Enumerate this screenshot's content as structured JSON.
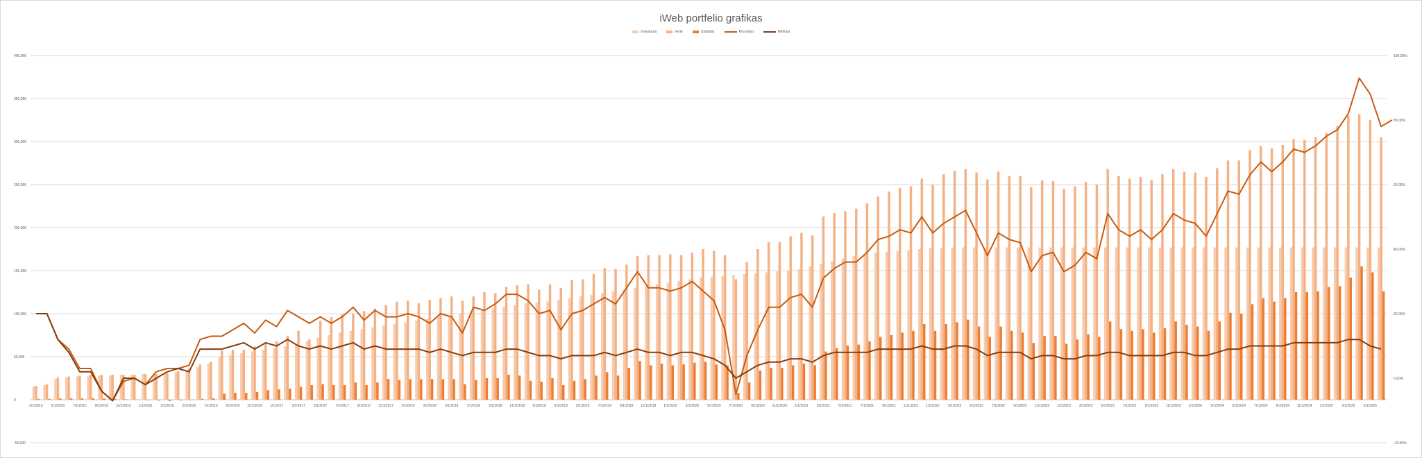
{
  "chart_data": {
    "type": "bar",
    "title": "iWeb portfelio grafikas",
    "legend": "top",
    "grid": true,
    "x_tick_labels": [
      "3/1/2015",
      "5/1/2015",
      "7/1/2015",
      "9/1/2015",
      "11/1/2015",
      "1/1/2016",
      "3/1/2016",
      "5/1/2016",
      "7/1/2016",
      "9/1/2016",
      "11/1/2016",
      "1/1/2017",
      "3/1/2017",
      "5/1/2017",
      "7/1/2017",
      "9/1/2017",
      "11/1/2017",
      "1/1/2018",
      "3/1/2018",
      "5/1/2018",
      "7/1/2018",
      "9/1/2018",
      "11/1/2018",
      "1/1/2019",
      "3/1/2019",
      "5/1/2019",
      "7/1/2019",
      "9/1/2019",
      "11/1/2019",
      "1/1/2020",
      "3/1/2020",
      "5/1/2020",
      "7/1/2020",
      "9/1/2020",
      "11/1/2020",
      "1/1/2021",
      "3/1/2021",
      "5/1/2021",
      "7/1/2021",
      "9/1/2021",
      "11/1/2021",
      "1/1/2022",
      "3/1/2022",
      "5/1/2022",
      "7/1/2022",
      "9/1/2022",
      "11/1/2022",
      "1/1/2023",
      "3/1/2023",
      "5/1/2023",
      "7/1/2023",
      "9/1/2023",
      "11/1/2023",
      "1/1/2024",
      "3/1/2024",
      "5/1/2024",
      "7/1/2024",
      "9/1/2024",
      "11/1/2024",
      "1/1/2025",
      "3/1/2025",
      "5/1/2025"
    ],
    "y_left": {
      "min": -50000,
      "max": 400000,
      "ticks": [
        "-50,000",
        "0",
        "50,000",
        "100,000",
        "150,000",
        "200,000",
        "250,000",
        "300,000",
        "350,000",
        "400,000"
      ]
    },
    "y_right": {
      "min": -0.2,
      "max": 1.0,
      "ticks": [
        "-20.00%",
        "0.00%",
        "20.00%",
        "40.00%",
        "60.00%",
        "80.00%",
        "100.00%"
      ]
    },
    "series": [
      {
        "name": "Investuota",
        "type": "bar",
        "axis": "left",
        "color": "#f8cbad",
        "values": [
          15000,
          17000,
          24000,
          26000,
          27000,
          27000,
          28000,
          28000,
          29000,
          29000,
          30000,
          30000,
          31000,
          32000,
          34000,
          38000,
          42000,
          50000,
          52000,
          54000,
          56000,
          58000,
          60000,
          62000,
          65000,
          68000,
          72000,
          75000,
          78000,
          80000,
          82000,
          84000,
          86000,
          88000,
          90000,
          92000,
          94000,
          96000,
          98000,
          100000,
          102000,
          104000,
          106000,
          108000,
          110000,
          112000,
          113000,
          114000,
          116000,
          118000,
          120000,
          122000,
          124000,
          126000,
          128000,
          130000,
          132000,
          134000,
          136000,
          138000,
          140000,
          142000,
          143000,
          144000,
          145000,
          146000,
          147000,
          148000,
          149000,
          150000,
          152000,
          155000,
          158000,
          161000,
          164000,
          167000,
          169000,
          171000,
          172000,
          173000,
          174000,
          175000,
          176000,
          176000,
          177000,
          177000,
          177000,
          177000,
          177000,
          177000,
          177000,
          177000,
          177000,
          177000,
          177000,
          177000,
          177000,
          177000,
          177000,
          177000,
          177000,
          177000,
          177000,
          177000,
          177000,
          177000,
          177000,
          177000,
          177000,
          177000,
          177000,
          177000,
          177000,
          177000,
          177000,
          177000,
          177000,
          177000,
          177000,
          177000,
          177000,
          177000,
          177000,
          177000
        ]
      },
      {
        "name": "Vertė",
        "type": "bar",
        "axis": "left",
        "color": "#f4b183",
        "values": [
          16000,
          18000,
          26000,
          27000,
          28000,
          29000,
          29000,
          29000,
          29000,
          29000,
          30000,
          30000,
          31000,
          33000,
          36000,
          41000,
          44000,
          57000,
          58000,
          58000,
          62000,
          66000,
          68000,
          74000,
          80000,
          70000,
          92000,
          96000,
          99000,
          100000,
          103000,
          106000,
          110000,
          114000,
          115000,
          112000,
          116000,
          118000,
          120000,
          115000,
          120000,
          125000,
          124000,
          131000,
          133000,
          134000,
          128000,
          134000,
          130000,
          139000,
          140000,
          146000,
          153000,
          152000,
          157000,
          167000,
          168000,
          168000,
          169000,
          168000,
          171000,
          175000,
          173000,
          168000,
          140000,
          160000,
          175000,
          183000,
          183000,
          190000,
          194000,
          191000,
          213000,
          217000,
          219000,
          222000,
          228000,
          236000,
          242000,
          246000,
          248000,
          257000,
          250000,
          262000,
          266000,
          268000,
          264000,
          256000,
          265000,
          260000,
          260000,
          247000,
          255000,
          254000,
          245000,
          248000,
          253000,
          250000,
          268000,
          260000,
          257000,
          259000,
          255000,
          262000,
          268000,
          265000,
          264000,
          259000,
          269000,
          278000,
          278000,
          290000,
          295000,
          292000,
          296000,
          303000,
          302000,
          305000,
          310000,
          318000,
          330000,
          332000,
          325000,
          305000
        ]
      },
      {
        "name": "Uždarbis",
        "type": "bar",
        "axis": "left",
        "color": "#ed7d31",
        "values": [
          1000,
          1000,
          1500,
          1500,
          1500,
          1600,
          1500,
          1200,
          500,
          100,
          -500,
          -1000,
          -1500,
          -800,
          -500,
          1000,
          1600,
          7000,
          8000,
          8000,
          9000,
          11000,
          12000,
          13000,
          15000,
          17000,
          18000,
          17000,
          17000,
          20000,
          17000,
          20000,
          24000,
          23000,
          24000,
          24000,
          24000,
          24000,
          24000,
          18000,
          23000,
          25000,
          25000,
          29000,
          28000,
          22000,
          21000,
          25000,
          17000,
          22000,
          24000,
          28000,
          32000,
          28000,
          37000,
          45000,
          40000,
          42000,
          40000,
          41000,
          43000,
          44000,
          41000,
          40000,
          8000,
          20000,
          34000,
          37000,
          37000,
          40000,
          42000,
          40000,
          56000,
          60000,
          63000,
          64000,
          68000,
          73000,
          75000,
          78000,
          80000,
          88000,
          80000,
          88000,
          90000,
          93000,
          85000,
          73000,
          85000,
          80000,
          78000,
          66000,
          74000,
          74000,
          65000,
          70000,
          76000,
          73000,
          91000,
          82000,
          80000,
          82000,
          78000,
          83000,
          91000,
          87000,
          85000,
          80000,
          91000,
          101000,
          100000,
          111000,
          118000,
          114000,
          118000,
          125000,
          125000,
          126000,
          131000,
          132000,
          142000,
          155000,
          148000,
          126000
        ]
      },
      {
        "name": "Procentai",
        "type": "line",
        "axis": "right",
        "color": "#c55a11",
        "values": [
          0.2,
          0.2,
          0.12,
          0.09,
          0.03,
          0.03,
          -0.04,
          -0.07,
          -0.01,
          0.0,
          -0.02,
          0.02,
          0.03,
          0.03,
          0.04,
          0.12,
          0.13,
          0.13,
          0.15,
          0.17,
          0.14,
          0.18,
          0.16,
          0.21,
          0.19,
          0.17,
          0.19,
          0.17,
          0.19,
          0.22,
          0.18,
          0.21,
          0.19,
          0.19,
          0.2,
          0.19,
          0.17,
          0.2,
          0.19,
          0.14,
          0.22,
          0.21,
          0.23,
          0.26,
          0.26,
          0.24,
          0.2,
          0.21,
          0.15,
          0.2,
          0.21,
          0.23,
          0.25,
          0.23,
          0.28,
          0.33,
          0.28,
          0.28,
          0.27,
          0.28,
          0.3,
          0.27,
          0.24,
          0.15,
          -0.05,
          0.07,
          0.15,
          0.22,
          0.22,
          0.25,
          0.26,
          0.22,
          0.31,
          0.34,
          0.36,
          0.36,
          0.39,
          0.43,
          0.44,
          0.46,
          0.45,
          0.5,
          0.45,
          0.48,
          0.5,
          0.52,
          0.45,
          0.38,
          0.45,
          0.43,
          0.42,
          0.33,
          0.38,
          0.39,
          0.33,
          0.35,
          0.39,
          0.37,
          0.51,
          0.46,
          0.44,
          0.46,
          0.43,
          0.46,
          0.51,
          0.49,
          0.48,
          0.44,
          0.51,
          0.58,
          0.57,
          0.63,
          0.67,
          0.64,
          0.67,
          0.71,
          0.7,
          0.72,
          0.75,
          0.77,
          0.82,
          0.93,
          0.88,
          0.78,
          0.8
        ]
      },
      {
        "name": "Metiniai",
        "type": "line",
        "axis": "right",
        "color": "#843c0c",
        "values": [
          0.2,
          0.2,
          0.12,
          0.08,
          0.02,
          0.02,
          -0.04,
          -0.07,
          0.0,
          0.0,
          -0.02,
          0.0,
          0.02,
          0.03,
          0.02,
          0.09,
          0.09,
          0.09,
          0.1,
          0.11,
          0.09,
          0.11,
          0.1,
          0.12,
          0.1,
          0.09,
          0.1,
          0.09,
          0.1,
          0.11,
          0.09,
          0.1,
          0.09,
          0.09,
          0.09,
          0.09,
          0.08,
          0.09,
          0.08,
          0.07,
          0.08,
          0.08,
          0.08,
          0.09,
          0.09,
          0.08,
          0.07,
          0.07,
          0.06,
          0.07,
          0.07,
          0.07,
          0.08,
          0.07,
          0.08,
          0.09,
          0.08,
          0.08,
          0.07,
          0.08,
          0.08,
          0.07,
          0.06,
          0.04,
          0.0,
          0.02,
          0.04,
          0.05,
          0.05,
          0.06,
          0.06,
          0.05,
          0.07,
          0.08,
          0.08,
          0.08,
          0.08,
          0.09,
          0.09,
          0.09,
          0.09,
          0.1,
          0.09,
          0.09,
          0.1,
          0.1,
          0.09,
          0.07,
          0.08,
          0.08,
          0.08,
          0.06,
          0.07,
          0.07,
          0.06,
          0.06,
          0.07,
          0.07,
          0.08,
          0.08,
          0.07,
          0.07,
          0.07,
          0.07,
          0.08,
          0.08,
          0.07,
          0.07,
          0.08,
          0.09,
          0.09,
          0.1,
          0.1,
          0.1,
          0.1,
          0.11,
          0.11,
          0.11,
          0.11,
          0.11,
          0.12,
          0.12,
          0.1,
          0.09
        ]
      }
    ]
  }
}
